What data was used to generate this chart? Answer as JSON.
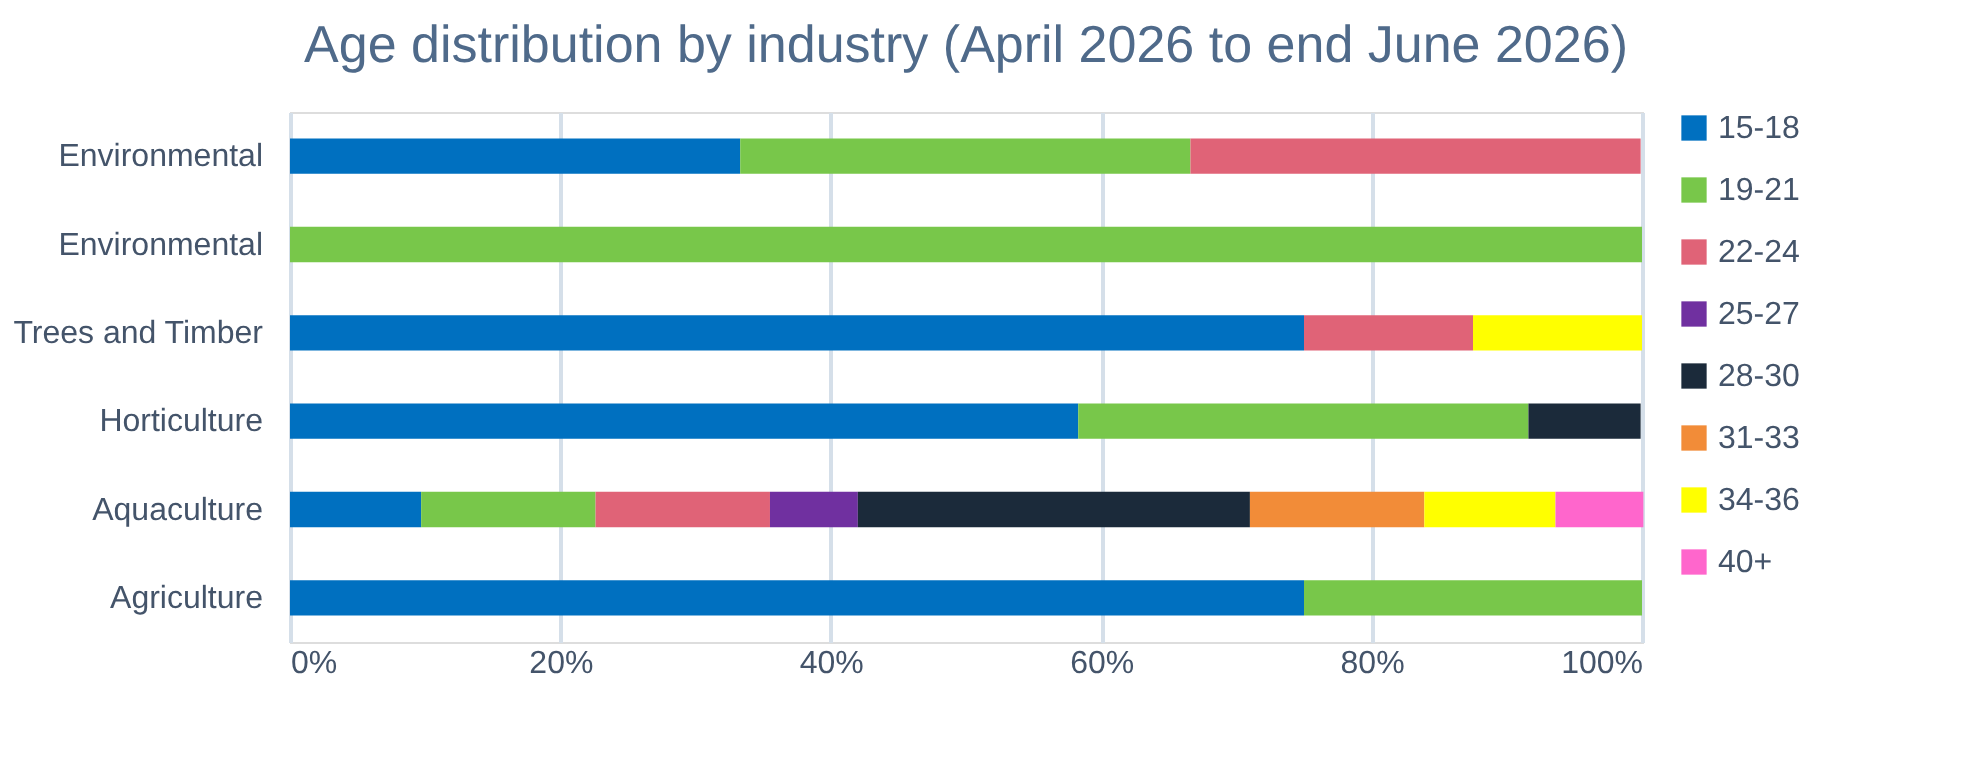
{
  "chart_data": {
    "type": "bar",
    "orientation": "horizontal",
    "stacked": true,
    "title": "Age distribution by industry (April 2026 to end June 2026)",
    "categories": [
      "Environmental",
      "Environmental",
      "Trees and Timber",
      "Horticulture",
      "Aquaculture",
      "Agriculture"
    ],
    "series": [
      {
        "name": "15-18",
        "color": "#0070c0",
        "values": [
          33.3,
          null,
          75,
          58.3,
          9.7,
          75
        ]
      },
      {
        "name": "19-21",
        "color": "#78c74a",
        "values": [
          33.3,
          100,
          null,
          33.3,
          12.9,
          25
        ]
      },
      {
        "name": "22-24",
        "color": "#e06377",
        "values": [
          33.3,
          null,
          12.5,
          null,
          12.9,
          null
        ]
      },
      {
        "name": "25-27",
        "color": "#7030a0",
        "values": [
          null,
          null,
          null,
          null,
          6.5,
          null
        ]
      },
      {
        "name": "28-30",
        "color": "#1b2a3a",
        "values": [
          null,
          null,
          null,
          8.3,
          29.0,
          null
        ]
      },
      {
        "name": "31-33",
        "color": "#f28c38",
        "values": [
          null,
          null,
          null,
          null,
          12.9,
          null
        ]
      },
      {
        "name": "34-36",
        "color": "#ffff00",
        "values": [
          null,
          null,
          12.5,
          null,
          9.7,
          null
        ]
      },
      {
        "name": "40+",
        "color": "#ff66cc",
        "values": [
          null,
          null,
          null,
          null,
          6.5,
          null
        ]
      }
    ],
    "xlim": [
      0,
      100
    ],
    "xticks": [
      {
        "value": 0,
        "label": "0%"
      },
      {
        "value": 20,
        "label": "20%"
      },
      {
        "value": 40,
        "label": "40%"
      },
      {
        "value": 60,
        "label": "60%"
      },
      {
        "value": 80,
        "label": "80%"
      },
      {
        "value": 100,
        "label": "100%"
      }
    ],
    "grid": "x",
    "legend": "right"
  }
}
